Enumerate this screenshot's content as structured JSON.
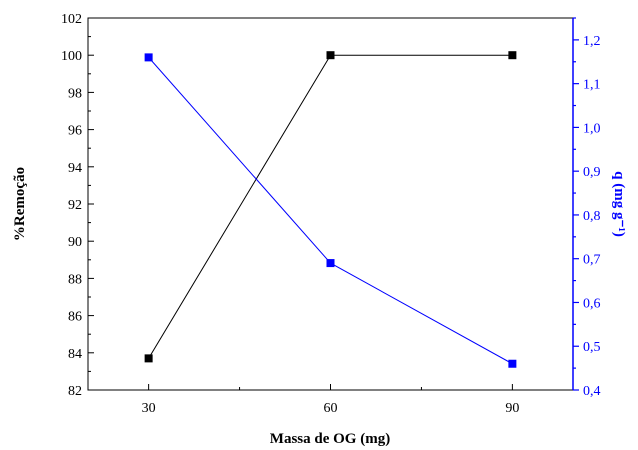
{
  "chart_data": {
    "type": "line",
    "x": [
      30,
      60,
      90
    ],
    "xlabel": "Massa de OG (mg)",
    "xticks": [
      "30",
      "60",
      "90"
    ],
    "xlim": [
      20,
      100
    ],
    "ylabel_left": "%Remoção",
    "ylabel_right": "q (mg g⁻¹)",
    "ylim_left": [
      82,
      102
    ],
    "ylim_right": [
      0.4,
      1.25
    ],
    "yticks_left": [
      "82",
      "84",
      "86",
      "88",
      "90",
      "92",
      "94",
      "96",
      "98",
      "100",
      "102"
    ],
    "yticks_right": [
      "0,4",
      "0,5",
      "0,6",
      "0,7",
      "0,8",
      "0,9",
      "1,0",
      "1,1",
      "1,2"
    ],
    "grid": false,
    "series": [
      {
        "axis": "left",
        "color": "#000000",
        "values": [
          83.7,
          100.0,
          100.0
        ]
      },
      {
        "axis": "right",
        "color": "#0000ff",
        "values": [
          1.16,
          0.69,
          0.46
        ]
      }
    ]
  }
}
